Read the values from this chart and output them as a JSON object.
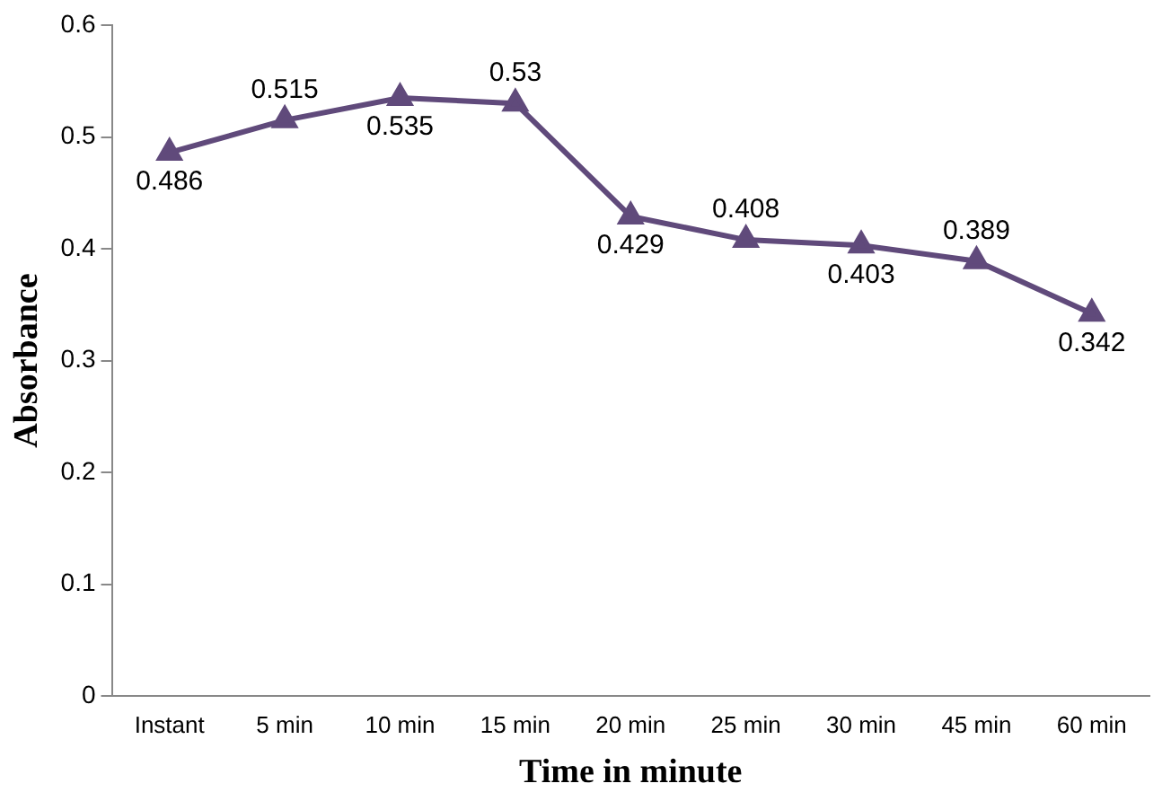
{
  "chart_data": {
    "type": "line",
    "xlabel": "Time in minute",
    "ylabel": "Absorbance",
    "categories": [
      "Instant",
      "5 min",
      "10 min",
      "15 min",
      "20 min",
      "25 min",
      "30 min",
      "45 min",
      "60 min"
    ],
    "values": [
      0.486,
      0.515,
      0.535,
      0.53,
      0.429,
      0.408,
      0.403,
      0.389,
      0.342
    ],
    "color": "#604a7b",
    "marker": "triangle",
    "data_labels": true,
    "ylim": [
      0,
      0.6
    ],
    "yticks": [
      0,
      0.1,
      0.2,
      0.3,
      0.4,
      0.5,
      0.6
    ],
    "grid": false,
    "legend": false
  }
}
